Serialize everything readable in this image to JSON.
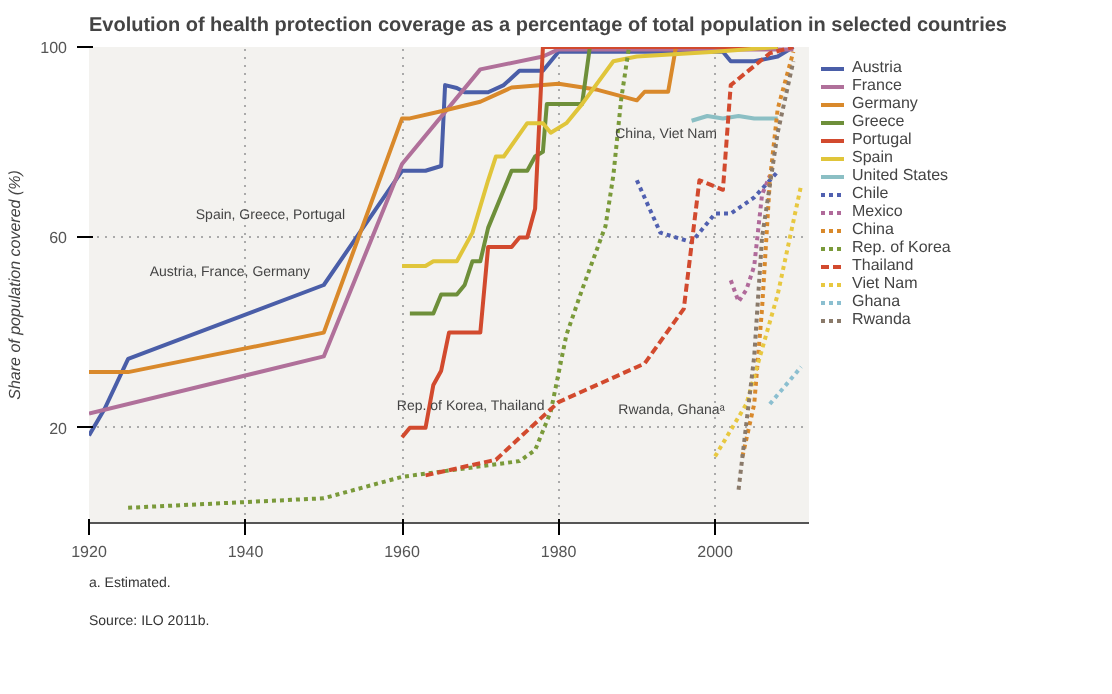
{
  "chart_data": {
    "type": "line",
    "title": "Evolution of health protection coverage as a percentage of total population in selected countries",
    "ylabel": "Share of population covered (%)",
    "xlim": [
      1920,
      2012
    ],
    "ylim": [
      0,
      100
    ],
    "xticks": [
      1920,
      1940,
      1960,
      1980,
      2000
    ],
    "yticks": [
      20,
      60,
      100
    ],
    "grid": true,
    "legend": "right",
    "series": [
      {
        "name": "Austria",
        "color": "#4a5ea8",
        "line_style": "solid",
        "x": [
          1920,
          1922,
          1925,
          1950,
          1960,
          1963,
          1965,
          1965.5,
          1967,
          1968,
          1971,
          1973,
          1975,
          1978,
          1980,
          2001,
          2002,
          2005,
          2008,
          2010
        ],
        "values": [
          18.4,
          24,
          34.5,
          50,
          74,
          74,
          75,
          92,
          91.4,
          90.5,
          90.5,
          92,
          95,
          95,
          99,
          99,
          97,
          97,
          98,
          100
        ]
      },
      {
        "name": "France",
        "color": "#b0709a",
        "line_style": "solid",
        "x": [
          1920,
          1950,
          1960,
          1970,
          1978,
          1980,
          2010
        ],
        "values": [
          23,
          35,
          75.4,
          95.3,
          98,
          99.5,
          99.5
        ]
      },
      {
        "name": "Germany",
        "color": "#d9892b",
        "line_style": "solid",
        "x": [
          1920,
          1925,
          1950,
          1960,
          1961,
          1965,
          1970,
          1972,
          1974,
          1980,
          1985,
          1990,
          1991,
          1994,
          1995,
          2008
        ],
        "values": [
          31.7,
          31.7,
          40,
          85,
          85,
          86.5,
          88.5,
          90,
          91.5,
          92.3,
          91,
          88.8,
          90.6,
          90.6,
          100,
          100
        ]
      },
      {
        "name": "Greece",
        "color": "#6e8f3a",
        "line_style": "solid",
        "x": [
          1961,
          1964,
          1965,
          1967,
          1968,
          1969,
          1970,
          1971,
          1973,
          1974,
          1976,
          1977,
          1978,
          1978.5,
          1983,
          1984,
          2008
        ],
        "values": [
          44,
          44,
          48,
          48,
          50,
          55,
          55,
          62,
          70,
          74,
          74,
          77,
          78,
          88,
          88,
          100,
          100
        ]
      },
      {
        "name": "Portugal",
        "color": "#d24a2e",
        "line_style": "solid",
        "x": [
          1960,
          1961,
          1963,
          1964,
          1965,
          1966,
          1970,
          1971,
          1974,
          1975,
          1976,
          1977,
          1978,
          2008
        ],
        "values": [
          18,
          20,
          20,
          29,
          32,
          40,
          40,
          58,
          58,
          60,
          60,
          66,
          100,
          100
        ]
      },
      {
        "name": "Spain",
        "color": "#e0c53a",
        "line_style": "solid",
        "x": [
          1960,
          1963,
          1964,
          1967,
          1969,
          1971,
          1972,
          1973,
          1976,
          1978,
          1979,
          1981,
          1983,
          1987,
          1990,
          2000,
          2008
        ],
        "values": [
          54,
          54,
          55,
          55,
          61,
          72,
          77,
          77,
          84,
          84,
          82,
          84,
          88,
          97,
          98,
          99,
          100
        ]
      },
      {
        "name": "United States",
        "color": "#8bbfc4",
        "line_style": "solid",
        "x": [
          1997,
          1999,
          2001,
          2003,
          2005,
          2008
        ],
        "values": [
          84.5,
          85.5,
          85,
          85.5,
          85,
          85
        ]
      },
      {
        "name": "Chile",
        "color": "#5060b0",
        "line_style": "dotted",
        "x": [
          1990,
          1993,
          1997,
          2000,
          2002,
          2005,
          2008
        ],
        "values": [
          72,
          61,
          59,
          65,
          65,
          68.4,
          73.8
        ]
      },
      {
        "name": "Mexico",
        "color": "#b06a9a",
        "line_style": "dotted",
        "x": [
          2002,
          2003,
          2004,
          2005,
          2006,
          2007
        ],
        "values": [
          51,
          46.5,
          49,
          54,
          69,
          73
        ]
      },
      {
        "name": "China",
        "color": "#d9892b",
        "line_style": "dotted",
        "x": [
          2003.5,
          2005,
          2006,
          2007,
          2008,
          2010
        ],
        "values": [
          14,
          25,
          45,
          72,
          87,
          99
        ]
      },
      {
        "name": "Rep. of Korea",
        "color": "#7a9a3a",
        "line_style": "dotted",
        "x": [
          1925,
          1950,
          1960,
          1975,
          1977,
          1979,
          1981,
          1983,
          1986,
          1987,
          1988,
          1989
        ],
        "values": [
          3.2,
          5.2,
          9.7,
          13,
          15.3,
          23.4,
          39.5,
          49,
          62.4,
          73,
          89,
          100
        ]
      },
      {
        "name": "Thailand",
        "color": "#d24a2e",
        "line_style": "dashed",
        "x": [
          1963,
          1972,
          1976,
          1980,
          1991,
          1996,
          1998,
          2001,
          2002,
          2005,
          2007,
          2010
        ],
        "values": [
          10,
          13.3,
          19.4,
          25.4,
          33.5,
          45,
          72,
          70,
          92,
          96,
          98.7,
          100
        ]
      },
      {
        "name": "Viet Nam",
        "color": "#e8c840",
        "line_style": "dotted",
        "x": [
          2000,
          2004,
          2008,
          2011
        ],
        "values": [
          14,
          25,
          48,
          71
        ]
      },
      {
        "name": "Ghana",
        "color": "#8bbfd0",
        "line_style": "dotted",
        "x": [
          2007,
          2011
        ],
        "values": [
          25,
          32.8
        ]
      },
      {
        "name": "Rwanda",
        "color": "#8a7a6a",
        "line_style": "dotted",
        "x": [
          2003,
          2005,
          2006,
          2008,
          2010
        ],
        "values": [
          7,
          35,
          60,
          82,
          97
        ]
      }
    ],
    "annotations": [
      {
        "text": "Austria, France, Germany",
        "x": 1949,
        "y": 51
      },
      {
        "text": "Spain, Greece, Portugal",
        "x": 1953.5,
        "y": 63
      },
      {
        "text": "Rep. of Korea, Thailand",
        "x": 1979,
        "y": 23
      },
      {
        "text": "China, Viet Nam",
        "x": 2001,
        "y": 80
      },
      {
        "text": "Rwanda, Ghanaᵃ",
        "x": 2002,
        "y": 22
      },
      "a. Estimated.",
      "Source: ILO 2011b."
    ]
  }
}
